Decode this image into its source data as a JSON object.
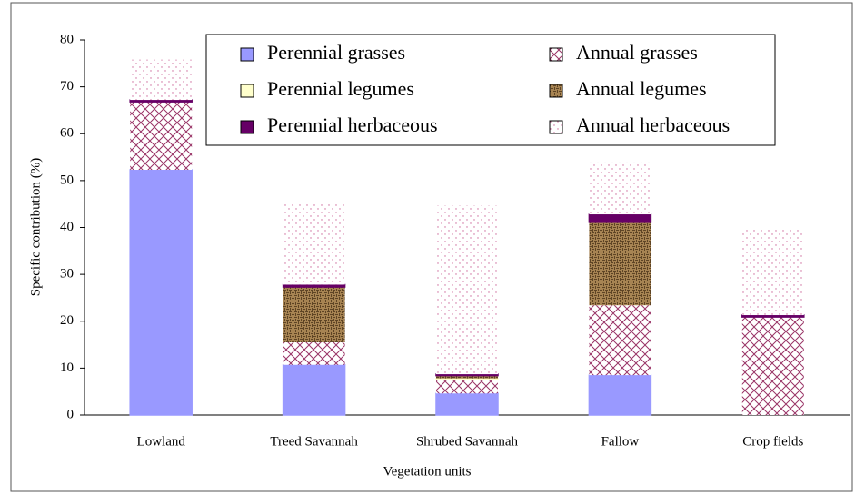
{
  "chart_data": {
    "type": "stacked_bar",
    "xlabel": "Vegetation units",
    "ylabel": "Specific contribution  (%)",
    "categories": [
      "Lowland",
      "Treed Savannah",
      "Shrubed Savannah",
      "Fallow",
      "Crop fields"
    ],
    "series": [
      {
        "name": "Perennial grasses",
        "color": "#9999ff",
        "values": [
          52.3,
          10.7,
          4.6,
          8.5,
          0
        ]
      },
      {
        "name": "Annual grasses",
        "color": "#993366",
        "pattern": "crosshatch",
        "values": [
          14.5,
          4.8,
          2.9,
          14.9,
          20.9
        ]
      },
      {
        "name": "Perennial legumes",
        "color": "#ffffcc",
        "values": [
          0,
          0,
          0.3,
          0,
          0
        ]
      },
      {
        "name": "Annual legumes",
        "color": "#8c6a3c",
        "pattern": "weave",
        "values": [
          0,
          11.8,
          0.6,
          17.7,
          0
        ]
      },
      {
        "name": "Perennial herbaceous",
        "color": "#660066",
        "values": [
          0.4,
          0.5,
          0.3,
          1.7,
          0.4
        ]
      },
      {
        "name": "Annual herbaceous",
        "color": "#cc6699",
        "pattern": "dots",
        "values": [
          8.6,
          17.2,
          36.0,
          11.1,
          18.4
        ]
      }
    ],
    "ylim": [
      0,
      80
    ],
    "yticks": [
      0,
      10,
      20,
      30,
      40,
      50,
      60,
      70,
      80
    ]
  }
}
